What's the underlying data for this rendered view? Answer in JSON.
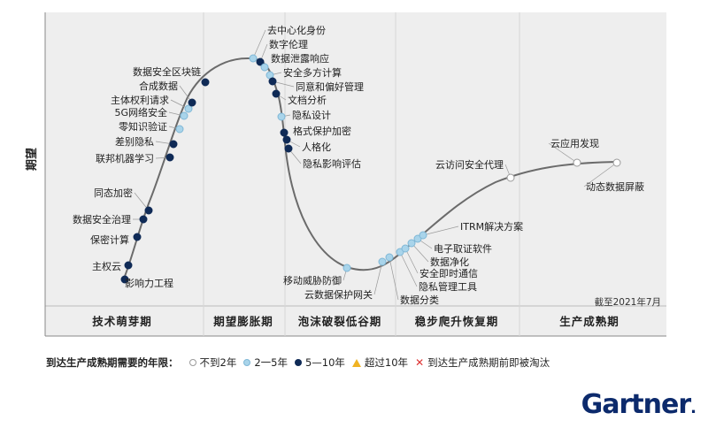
{
  "chart_data": {
    "type": "line",
    "subtype": "hype-cycle",
    "ylabel": "期望",
    "as_of": "截至2021年7月",
    "phases": [
      "技术萌芽期",
      "期望膨胀期",
      "泡沫破裂低谷期",
      "稳步爬升恢复期",
      "生产成熟期"
    ],
    "points": [
      {
        "label": "影响力工程",
        "cat": 2
      },
      {
        "label": "主权云",
        "cat": 2
      },
      {
        "label": "保密计算",
        "cat": 2
      },
      {
        "label": "数据安全治理",
        "cat": 2
      },
      {
        "label": "同态加密",
        "cat": 2
      },
      {
        "label": "联邦机器学习",
        "cat": 2
      },
      {
        "label": "差别隐私",
        "cat": 2
      },
      {
        "label": "零知识验证",
        "cat": 1
      },
      {
        "label": "5G网络安全",
        "cat": 1
      },
      {
        "label": "主体权利请求",
        "cat": 1
      },
      {
        "label": "合成数据",
        "cat": 2
      },
      {
        "label": "数据安全区块链",
        "cat": 2
      },
      {
        "label": "去中心化身份",
        "cat": 1
      },
      {
        "label": "数字伦理",
        "cat": 2
      },
      {
        "label": "数据泄露响应",
        "cat": 1
      },
      {
        "label": "安全多方计算",
        "cat": 1
      },
      {
        "label": "同意和偏好管理",
        "cat": 2
      },
      {
        "label": "文档分析",
        "cat": 2
      },
      {
        "label": "隐私设计",
        "cat": 1
      },
      {
        "label": "格式保护加密",
        "cat": 2
      },
      {
        "label": "人格化",
        "cat": 2
      },
      {
        "label": "隐私影响评估",
        "cat": 2
      },
      {
        "label": "移动威胁防御",
        "cat": 1
      },
      {
        "label": "云数据保护网关",
        "cat": 1
      },
      {
        "label": "数据分类",
        "cat": 1
      },
      {
        "label": "隐私管理工具",
        "cat": 1
      },
      {
        "label": "安全即时通信",
        "cat": 1
      },
      {
        "label": "数据净化",
        "cat": 1
      },
      {
        "label": "电子取证软件",
        "cat": 1
      },
      {
        "label": "ITRM解决方案",
        "cat": 1
      },
      {
        "label": "云访问安全代理",
        "cat": 0
      },
      {
        "label": "云应用发现",
        "cat": 0
      },
      {
        "label": "动态数据屏蔽",
        "cat": 0
      }
    ]
  },
  "legend": {
    "title": "到达生产成熟期需要的年限：",
    "items": [
      {
        "label": "不到2年",
        "symbol": "dot-white"
      },
      {
        "label": "2一5年",
        "symbol": "dot-light"
      },
      {
        "label": "5—10年",
        "symbol": "dot-dark"
      },
      {
        "label": "超过10年",
        "symbol": "triangle"
      },
      {
        "label": "到达生产成熟期前即被淘汰",
        "symbol": "cross"
      }
    ]
  },
  "brand": {
    "name": "Gartner",
    "mark": "."
  },
  "colors": {
    "curve": "#6b6b6b",
    "dark": "#0f2a56",
    "light": "#a9d4ea",
    "white": "#ffffff",
    "triangle": "#f0b323",
    "cross": "#dd3333"
  }
}
